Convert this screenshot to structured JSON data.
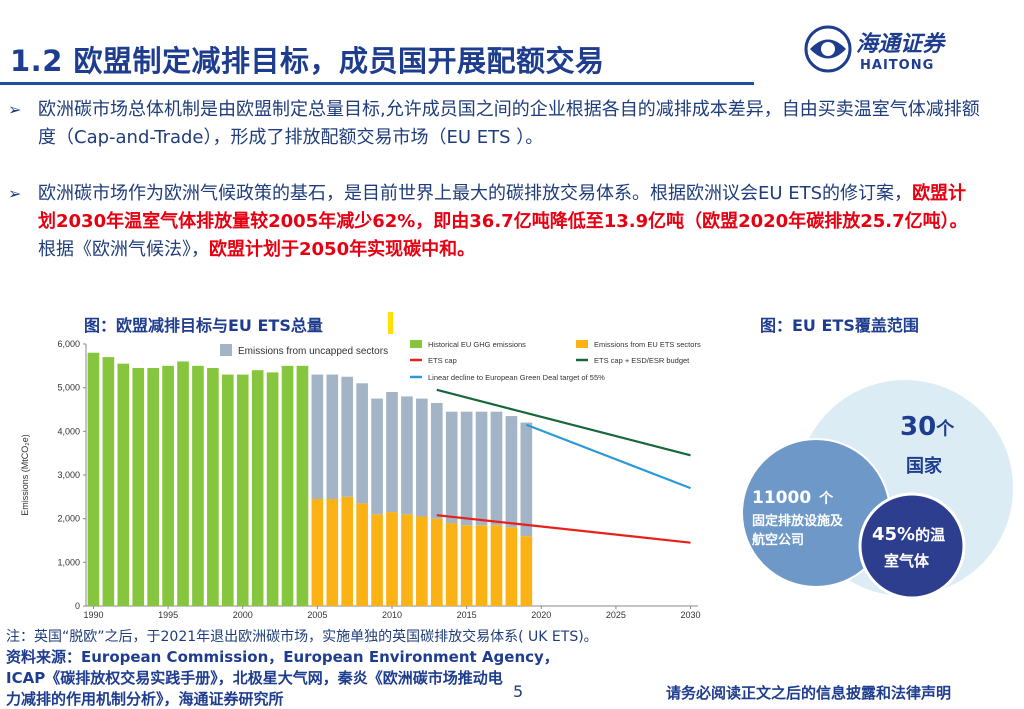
{
  "header": {
    "title": "1.2 欧盟制定减排目标，成员国开展配额交易",
    "logo_cn": "海通证券",
    "logo_en": "HAITONG"
  },
  "bullets": {
    "b1": "欧洲碳市场总体机制是由欧盟制定总量目标,允许成员国之间的企业根据各自的减排成本差异，自由买卖温室气体减排额度（Cap-and-Trade），形成了排放配额交易市场（EU ETS ）。",
    "b2_a": "欧洲碳市场作为欧洲气候政策的基石，是目前世界上最大的碳排放交易体系。根据欧洲议会EU ETS的修订案，",
    "b2_red1": "欧盟计划2030年温室气体排放量较2005年减少62%，即由36.7亿吨降低至13.9亿吨（欧盟2020年碳排放25.7亿吨）。",
    "b2_b": "根据《欧洲气候法》，",
    "b2_red2": "欧盟计划于2050年实现碳中和。"
  },
  "captions": {
    "left": "图：欧盟减排目标与EU ETS总量",
    "right": "图：EU ETS覆盖范围"
  },
  "chart_data": {
    "type": "bar",
    "ylabel": "Emissions (MtCO₂e)",
    "ylim": [
      0,
      6000
    ],
    "yticks": [
      0,
      1000,
      2000,
      3000,
      4000,
      5000,
      6000
    ],
    "ytick_labels": [
      "0",
      "1,000",
      "2,000",
      "3,000",
      "4,000",
      "5,000",
      "6,000"
    ],
    "xticks": [
      1990,
      1995,
      2000,
      2005,
      2010,
      2015,
      2020,
      2025,
      2030
    ],
    "xlim": [
      1989.5,
      2030.5
    ],
    "legend": {
      "historical": "Historical EU GHG emissions",
      "uncapped": "Emissions from uncapped sectors",
      "ets_sectors": "Emissions from EU ETS sectors",
      "ets_cap": "ETS cap",
      "ets_esd": "ETS cap + ESD/ESR budget",
      "linear": "Linear decline to European Green Deal target of 55%"
    },
    "colors": {
      "historical": "#86c63f",
      "uncapped": "#a3b4c6",
      "ets_sectors": "#fbb215",
      "ets_cap": "#e8201a",
      "ets_esd": "#16683a",
      "linear": "#2b9ad6"
    },
    "historical": {
      "years": [
        1990,
        1991,
        1992,
        1993,
        1994,
        1995,
        1996,
        1997,
        1998,
        1999,
        2000,
        2001,
        2002,
        2003,
        2004
      ],
      "values": [
        5800,
        5700,
        5550,
        5450,
        5450,
        5500,
        5600,
        5500,
        5450,
        5300,
        5300,
        5400,
        5350,
        5500,
        5500
      ]
    },
    "stacked": {
      "years": [
        2005,
        2006,
        2007,
        2008,
        2009,
        2010,
        2011,
        2012,
        2013,
        2014,
        2015,
        2016,
        2017,
        2018,
        2019
      ],
      "ets": [
        2450,
        2450,
        2500,
        2350,
        2100,
        2150,
        2100,
        2050,
        2000,
        1900,
        1850,
        1850,
        1850,
        1800,
        1600
      ],
      "uncapped": [
        2850,
        2850,
        2750,
        2750,
        2650,
        2750,
        2700,
        2700,
        2650,
        2550,
        2600,
        2600,
        2600,
        2550,
        2600
      ]
    },
    "ets_cap": {
      "x": [
        2013,
        2030
      ],
      "y": [
        2080,
        1450
      ]
    },
    "ets_esd": {
      "x": [
        2013,
        2030
      ],
      "y": [
        4950,
        3450
      ]
    },
    "linear": {
      "x": [
        2019,
        2030
      ],
      "y": [
        4150,
        2700
      ]
    }
  },
  "venn": {
    "outer_num": "30",
    "outer_unit": "个",
    "outer_label": "国家",
    "mid_num": "11000",
    "mid_unit": "个",
    "mid_label": "固定排放设施及航空公司",
    "inner_num": "45%",
    "inner_unit": "的温",
    "inner_label": "室气体",
    "colors": {
      "outer": "#dcecf4",
      "mid": "#6e98c8",
      "inner": "#2e3e8e"
    }
  },
  "footer": {
    "note": "注：英国“脱欧”之后，于2021年退出欧洲碳市场，实施单独的英国碳排放交易体系( UK ETS)。",
    "source_1": "资料来源：European Commission，European Environment Agency，",
    "source_2": "ICAP《碳排放权交易实践手册》，北极星大气网，秦炎《欧洲碳市场推动电",
    "source_3": "力减排的作用机制分析》，海通证券研究所",
    "page": "5",
    "disclaimer": "请务必阅读正文之后的信息披露和法律声明"
  }
}
